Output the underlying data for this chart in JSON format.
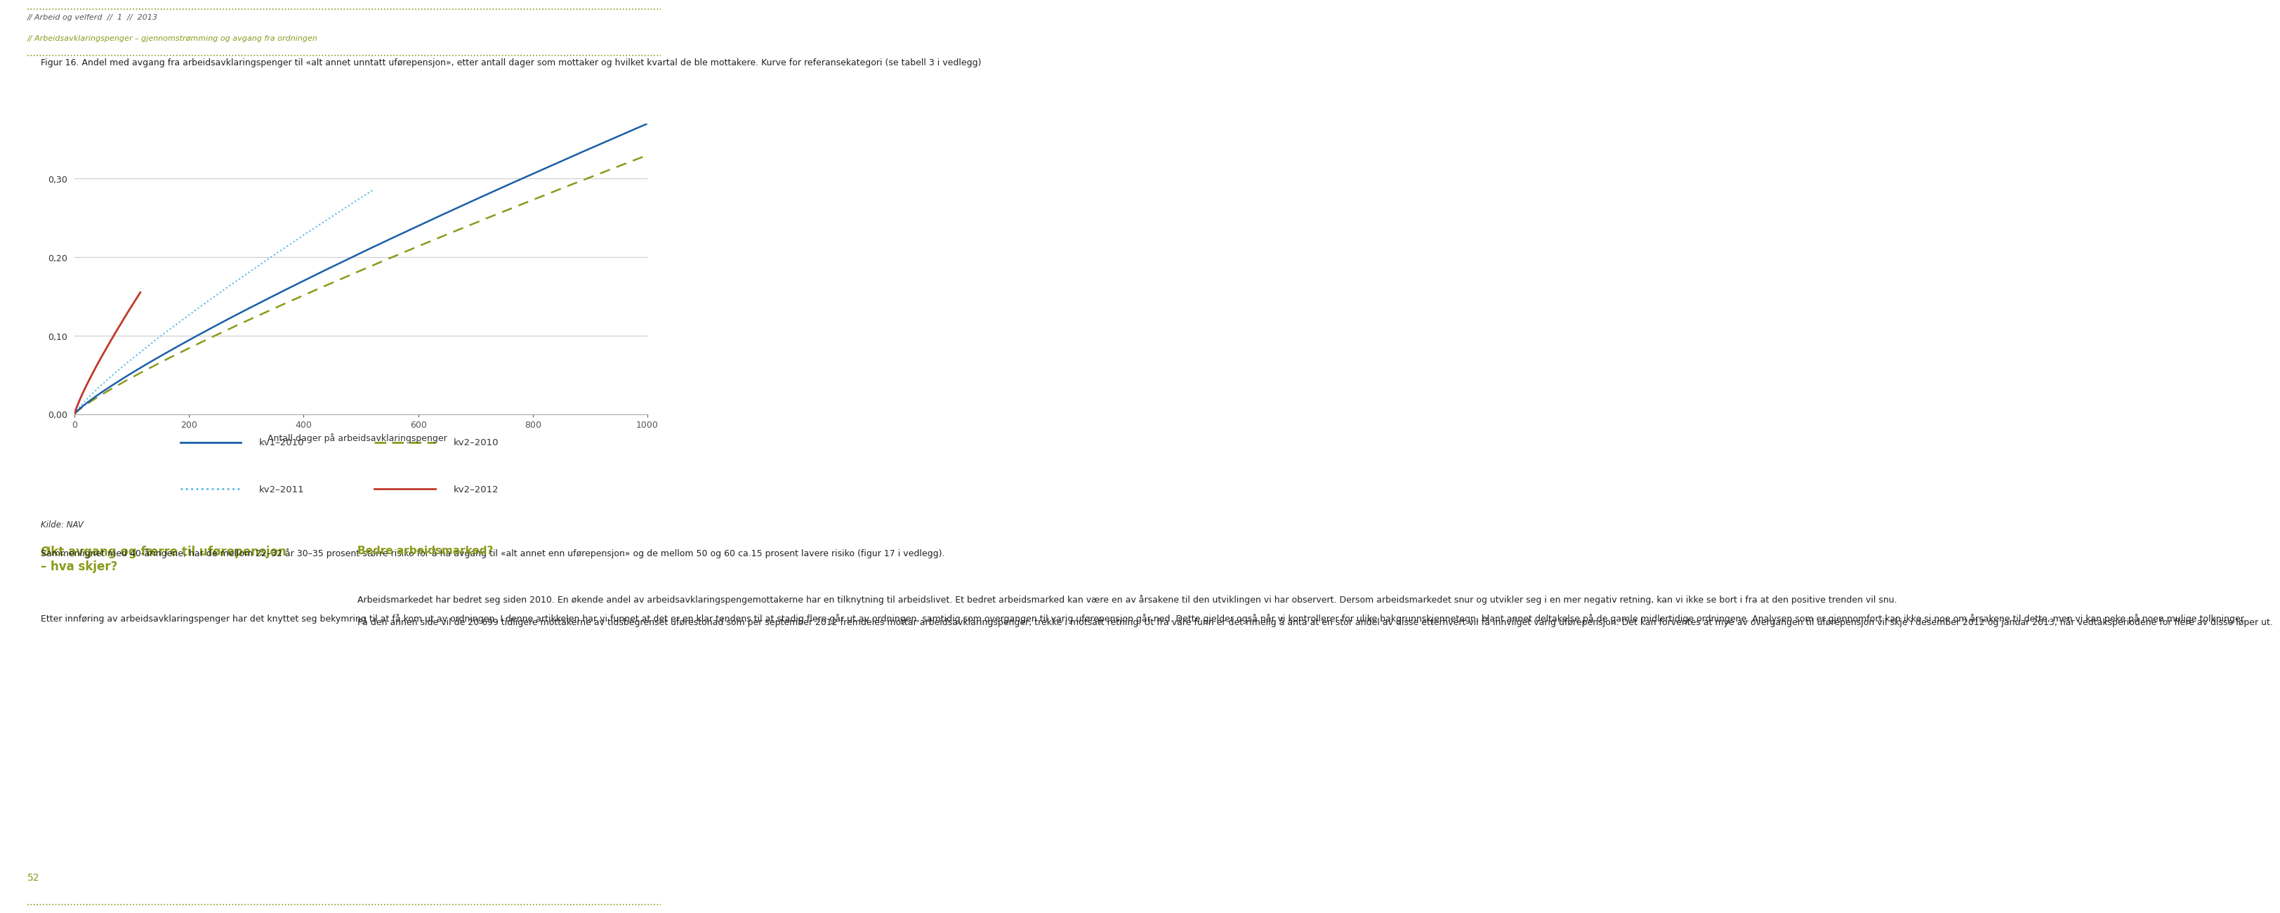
{
  "bg_color": "#ffffff",
  "header_line1": "// Arbeid og velferd  //  1  //  2013",
  "header_line2": "// Arbeidsavklaringspenger – gjennomstrømming og avgang fra ordningen",
  "header_color1": "#555555",
  "header_color2": "#8a9a1a",
  "header_dot_color": "#8a9a1a",
  "fig_caption": "Figur 16. Andel med avgang fra arbeidsavklaringspenger til «alt annet unntatt uførepensjon», etter antall dager som mottaker og hvilket kvartal de ble mottakere. Kurve for referansekategori (se tabell 3 i vedlegg)",
  "xlabel": "Antall dager på arbeidsavklaringspenger",
  "ylabel": "",
  "xlim": [
    0,
    1000
  ],
  "ylim": [
    0.0,
    0.37
  ],
  "yticks": [
    0.0,
    0.1,
    0.2,
    0.3
  ],
  "xticks": [
    0,
    200,
    400,
    600,
    800,
    1000
  ],
  "legend_items": [
    "kv1–2010",
    "kv2–2010",
    "kv2–2011",
    "kv2–2012"
  ],
  "legend_styles": [
    "solid_blue",
    "dashed_olive",
    "dotted_lightblue",
    "solid_red"
  ],
  "source_text": "Kilde: NAV",
  "left_col_title": "Økt avgang og færre til uførepensjon\n– hva skjer?",
  "left_col_title_color": "#8a9a1a",
  "left_col_body": "Etter innføring av arbeidsavklaringspenger har det knyttet seg bekymring til at få kom ut av ordningen. I denne artikkelen har vi funnet at det er en klar tendens til at stadig flere går ut av ordningen, samtidig som overgangen til varig uførepensjon går ned. Dette gjelder også når vi kontrollerer for ulike bakgrunnskjennetegn, blant annet deltakelse på de gamle midlertidige ordningene. Analysen som er gjennomfort kan ikke si noe om årsakene til dette, men vi kan peke på noen mulige tolkninger.",
  "right_col_title": "Bedre arbeidsmarked?",
  "right_col_title_color": "#8a9a1a",
  "right_col_body1": "Sammenlignet med 40-åringene, har de mellom 22–32 år 30–35 prosent større risiko for å ha avgang til «alt annet enn uførepensjon» og de mellom 50 og 60 ca.15 prosent lavere risiko (figur 17 i vedlegg).",
  "right_col_body2": "Arbeidsmarkedet har bedret seg siden 2010. En økende andel av arbeidsavklaringspengemottakerne har en tilknytning til arbeidslivet. Et bedret arbeidsmarked kan være en av årsakene til den utviklingen vi har observert. Dersom arbeidsmarkedet snur og utvikler seg i en mer negativ retning, kan vi ikke se bort i fra at den positive trenden vil snu.\n\nPå den annen side vil de 20 699 tidligere mottakerne av tidsbegrenset uførestonad som per september 2012 fremdeles mottar arbeidsavklaringspenger, trekke i motsatt retning. Ut fra våre funn er det rimelig å anta at en stor andel av disse etterhvert vil få innvilget varig uførepensjon. Det kan forventes at mye av overgangen til uførepensjon vil skje i desember 2012 og januar 2013, når vedtaksperiodene for flere av disse løper ut.",
  "page_number": "52",
  "dot_border_color": "#8a9a1a",
  "grid_color": "#cccccc",
  "axis_color": "#aaaaaa",
  "kv1_2010_color": "#1a5fa8",
  "kv2_2010_color": "#8a9a1a",
  "kv2_2011_color": "#5bb8e8",
  "kv2_2012_color": "#c0392b"
}
